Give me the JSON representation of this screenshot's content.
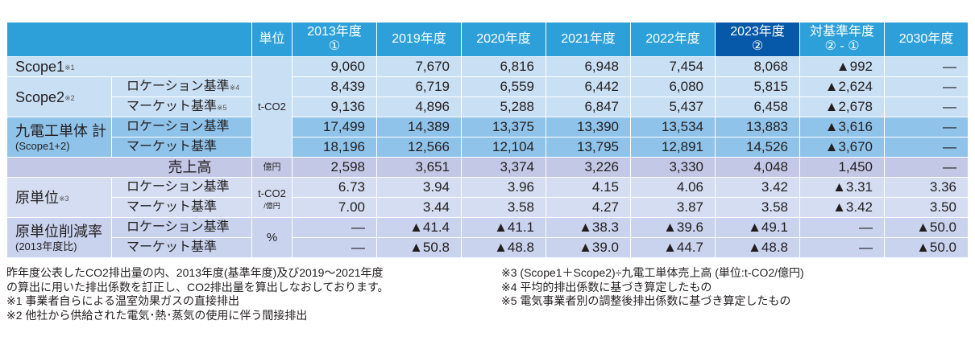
{
  "header": {
    "unit": "単位",
    "years": [
      {
        "line1": "2013年度",
        "line2": "①"
      },
      {
        "line1": "2019年度",
        "line2": ""
      },
      {
        "line1": "2020年度",
        "line2": ""
      },
      {
        "line1": "2021年度",
        "line2": ""
      },
      {
        "line1": "2022年度",
        "line2": ""
      },
      {
        "line1": "2023年度",
        "line2": "②"
      },
      {
        "line1": "対基準年度",
        "line2": "② - ①"
      },
      {
        "line1": "2030年度",
        "line2": ""
      }
    ]
  },
  "units": {
    "tco2": "t-CO2",
    "oku": "億円",
    "intensity_line1": "t-CO2",
    "intensity_line2": "/億円",
    "percent": "%"
  },
  "groups": {
    "scope1": {
      "label": "Scope1",
      "note": "※1"
    },
    "scope2": {
      "label": "Scope2",
      "note": "※2"
    },
    "total": {
      "label": "九電工単体 計",
      "sub": "(Scope1+2)"
    },
    "sales": {
      "label": "売上高"
    },
    "intensity": {
      "label": "原単位",
      "note": "※3"
    },
    "reduction": {
      "label": "原単位削減率",
      "sub": "(2013年度比)"
    }
  },
  "sublabels": {
    "location": "ロケーション基準",
    "market": "マーケット基準",
    "note4": "※4",
    "note5": "※5"
  },
  "rows": {
    "scope1": [
      "9,060",
      "7,670",
      "6,816",
      "6,948",
      "7,454",
      "8,068",
      "▲992",
      "—"
    ],
    "scope2_location": [
      "8,439",
      "6,719",
      "6,559",
      "6,442",
      "6,080",
      "5,815",
      "▲2,624",
      "—"
    ],
    "scope2_market": [
      "9,136",
      "4,896",
      "5,288",
      "6,847",
      "5,437",
      "6,458",
      "▲2,678",
      "—"
    ],
    "total_location": [
      "17,499",
      "14,389",
      "13,375",
      "13,390",
      "13,534",
      "13,883",
      "▲3,616",
      "—"
    ],
    "total_market": [
      "18,196",
      "12,566",
      "12,104",
      "13,795",
      "12,891",
      "14,526",
      "▲3,670",
      "—"
    ],
    "sales": [
      "2,598",
      "3,651",
      "3,374",
      "3,226",
      "3,330",
      "4,048",
      "1,450",
      "—"
    ],
    "intensity_location": [
      "6.73",
      "3.94",
      "3.96",
      "4.15",
      "4.06",
      "3.42",
      "▲3.31",
      "3.36"
    ],
    "intensity_market": [
      "7.00",
      "3.44",
      "3.58",
      "4.27",
      "3.87",
      "3.58",
      "▲3.42",
      "3.50"
    ],
    "reduction_location": [
      "—",
      "▲41.4",
      "▲41.1",
      "▲38.3",
      "▲39.6",
      "▲49.1",
      "—",
      "▲50.0"
    ],
    "reduction_market": [
      "—",
      "▲50.8",
      "▲48.8",
      "▲39.0",
      "▲44.7",
      "▲48.8",
      "—",
      "▲50.0"
    ]
  },
  "notes_left": [
    "昨年度公表したCO2排出量の内、2013年度(基準年度)及び2019～2021年度",
    "の算出に用いた排出係数を訂正し、CO2排出量を算出しなおしております。",
    "※1 事業者自らによる温室効果ガスの直接排出",
    "※2 他社から供給された電気･熱･蒸気の使用に伴う間接排出"
  ],
  "notes_right": [
    "※3 (Scope1＋Scope2)÷九電工単体売上高 (単位:t-CO2/億円)",
    "※4 平均的排出係数に基づき算定したもの",
    "※5 電気事業者別の調整後排出係数に基づき算定したもの"
  ],
  "colors": {
    "header": "#2ea0d9",
    "header_highlight": "#0659a8",
    "scope_rows": "#c9dff4",
    "total_rows": "#8fc3ea",
    "sales_row": "#c3c8e6",
    "intensity_rows": "#d4ddf1"
  }
}
